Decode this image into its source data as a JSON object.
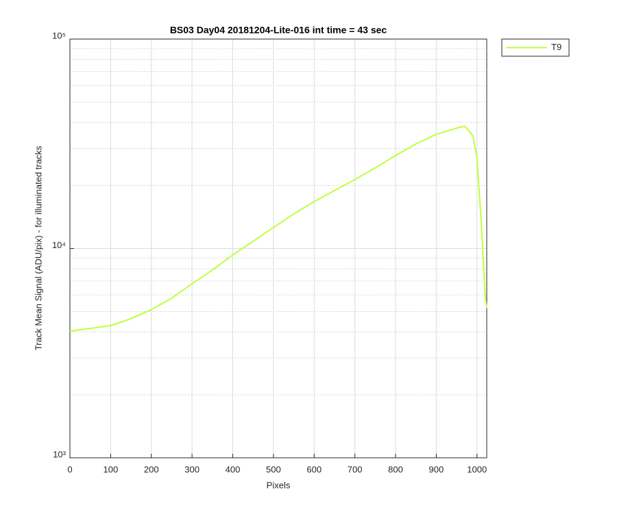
{
  "chart_data": {
    "type": "line",
    "title": "BS03 Day04 20181204-Lite-016 int time = 43 sec",
    "x_label": "Pixels",
    "y_label": "Track Mean Signal (ADU/pix) - for illuminated tracks",
    "x": [
      0,
      50,
      100,
      150,
      200,
      250,
      300,
      350,
      400,
      450,
      500,
      550,
      600,
      650,
      700,
      750,
      800,
      850,
      900,
      950,
      970,
      990,
      1000,
      1010,
      1020,
      1024
    ],
    "series": [
      {
        "name": "T9",
        "color": "#bfff3f",
        "values": [
          4030,
          4150,
          4280,
          4620,
          5100,
          5790,
          6780,
          7880,
          9310,
          10820,
          12590,
          14620,
          16760,
          18910,
          21330,
          24260,
          27800,
          31570,
          35080,
          37540,
          38400,
          34500,
          27150,
          13770,
          6010,
          5170
        ]
      }
    ],
    "xlim": [
      0,
      1024
    ],
    "xticks": [
      0,
      100,
      200,
      300,
      400,
      500,
      600,
      700,
      800,
      900,
      1000
    ],
    "ylim": [
      1000,
      100000
    ],
    "yscale": "log",
    "yticks": [
      {
        "value": 1000,
        "label": "10³"
      },
      {
        "value": 10000,
        "label": "10⁴"
      },
      {
        "value": 100000,
        "label": "10⁵"
      }
    ],
    "yminor_ticks": [
      2000,
      3000,
      4000,
      5000,
      6000,
      7000,
      8000,
      9000,
      20000,
      30000,
      40000,
      50000,
      60000,
      70000,
      80000,
      90000
    ],
    "grid": true,
    "legend": "outside-top-right"
  }
}
